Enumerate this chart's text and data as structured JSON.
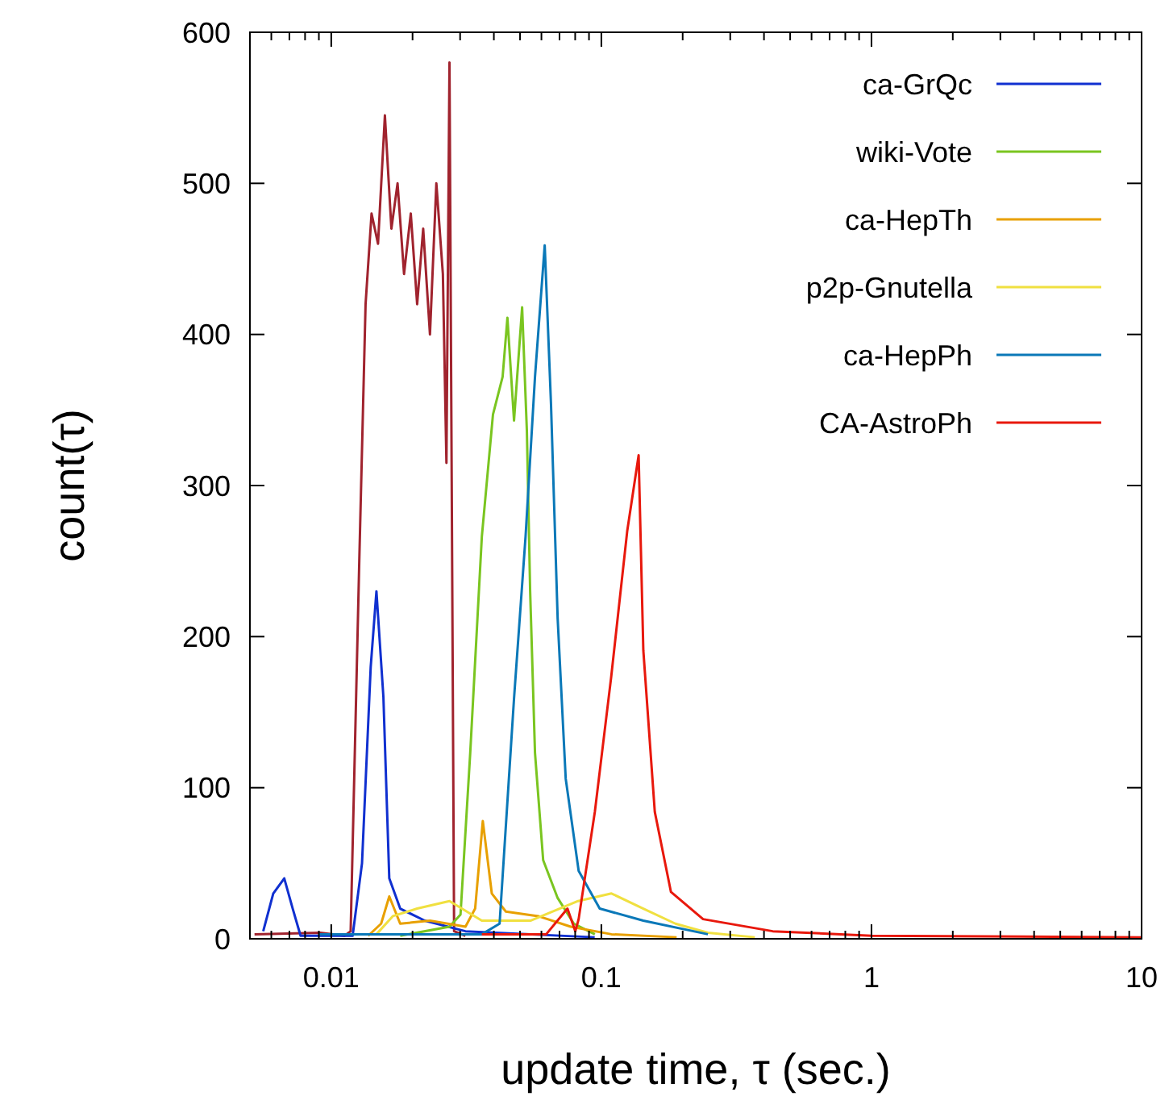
{
  "chart_data": {
    "type": "line",
    "xlabel": "update time, τ (sec.)",
    "ylabel": "count(τ)",
    "log": "x",
    "xlim": [
      0.005,
      10
    ],
    "xticks": [
      0.01,
      0.1,
      1,
      10
    ],
    "ylim": [
      0,
      600
    ],
    "yticks": [
      0,
      100,
      200,
      300,
      400,
      500,
      600
    ],
    "grid": false,
    "legend": "top right",
    "marker": "none",
    "line_style": "solid",
    "series": [
      {
        "color": "#a0232e",
        "x": [
          0.0052,
          0.0091,
          0.0112,
          0.0118,
          0.0127,
          0.0134,
          0.0141,
          0.0149,
          0.0158,
          0.0167,
          0.0176,
          0.0186,
          0.0197,
          0.0208,
          0.0219,
          0.0232,
          0.0245,
          0.0259,
          0.0267,
          0.0274,
          0.0285,
          0.0314
        ],
        "values": [
          3,
          4,
          2,
          5,
          250,
          420,
          480,
          460,
          545,
          470,
          500,
          440,
          480,
          420,
          470,
          400,
          500,
          440,
          315,
          580,
          5,
          2
        ]
      },
      {
        "name": "ca-GrQc",
        "color": "#1030d0",
        "x": [
          0.0056,
          0.0061,
          0.0067,
          0.0072,
          0.0077,
          0.012,
          0.013,
          0.014,
          0.0147,
          0.0156,
          0.0164,
          0.018,
          0.0222,
          0.0314,
          0.0945
        ],
        "values": [
          5,
          30,
          40,
          20,
          2,
          2,
          50,
          180,
          230,
          160,
          40,
          20,
          12,
          5,
          1
        ]
      },
      {
        "name": "wiki-Vote",
        "color": "#7ac520",
        "x": [
          0.018,
          0.0274,
          0.0301,
          0.0327,
          0.0361,
          0.0397,
          0.0431,
          0.0449,
          0.0475,
          0.0509,
          0.053,
          0.0545,
          0.0568,
          0.0609,
          0.0689,
          0.0791,
          0.0946
        ],
        "values": [
          2,
          8,
          16,
          123,
          266,
          347,
          372,
          411,
          343,
          418,
          336,
          230,
          123,
          52,
          27,
          10,
          3
        ]
      },
      {
        "name": "ca-HepTh",
        "color": "#e8a000",
        "x": [
          0.0137,
          0.0153,
          0.0164,
          0.018,
          0.0232,
          0.0314,
          0.0341,
          0.0364,
          0.0393,
          0.0443,
          0.0584,
          0.077,
          0.109,
          0.19
        ],
        "values": [
          2,
          10,
          28,
          10,
          12,
          8,
          20,
          78,
          30,
          18,
          15,
          8,
          3,
          1
        ]
      },
      {
        "name": "p2p-Gnutella",
        "color": "#f0e040",
        "x": [
          0.0147,
          0.0169,
          0.0208,
          0.0274,
          0.0361,
          0.0546,
          0.082,
          0.109,
          0.143,
          0.188,
          0.248,
          0.37
        ],
        "values": [
          3,
          15,
          20,
          25,
          12,
          12,
          25,
          30,
          20,
          10,
          4,
          1
        ]
      },
      {
        "name": "ca-HepPh",
        "color": "#0a78b8",
        "x": [
          0.009,
          0.0361,
          0.042,
          0.0475,
          0.0524,
          0.0568,
          0.0617,
          0.0651,
          0.0689,
          0.0738,
          0.0824,
          0.0986,
          0.143,
          0.248
        ],
        "values": [
          3,
          3,
          10,
          159,
          266,
          372,
          459,
          354,
          212,
          106,
          45,
          20,
          12,
          3
        ]
      },
      {
        "name": "CA-AstroPh",
        "color": "#e8180c",
        "x": [
          0.0361,
          0.0625,
          0.0749,
          0.0801,
          0.0824,
          0.0946,
          0.1087,
          0.1247,
          0.1374,
          0.143,
          0.1577,
          0.181,
          0.238,
          0.431,
          1,
          10
        ],
        "values": [
          3,
          3,
          20,
          5,
          13,
          84,
          173,
          270,
          320,
          191,
          84,
          31,
          13,
          5,
          2,
          1
        ]
      }
    ]
  }
}
